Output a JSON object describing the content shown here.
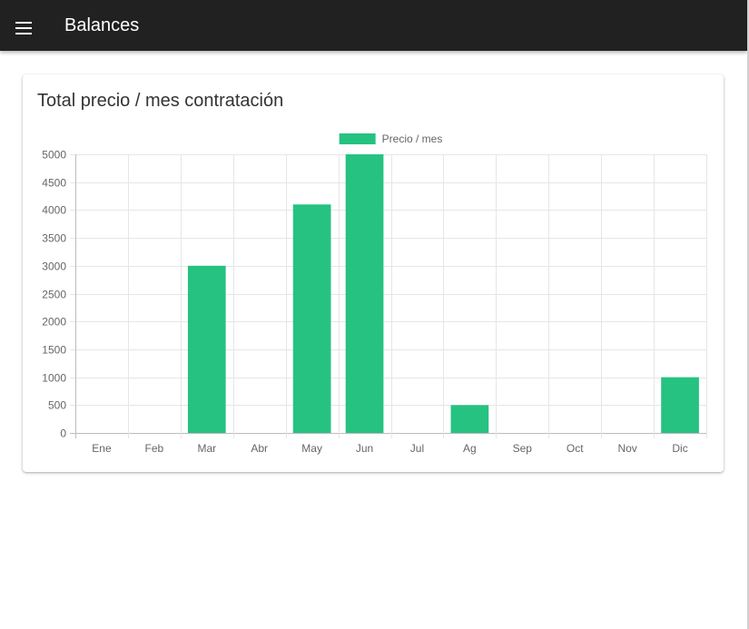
{
  "appbar": {
    "title": "Balances",
    "menu_icon": "menu-icon"
  },
  "card": {
    "title": "Total precio / mes contratación"
  },
  "colors": {
    "appbar": "#212121",
    "bar": "#26c281"
  },
  "chart_data": {
    "type": "bar",
    "title": "",
    "xlabel": "",
    "ylabel": "",
    "categories": [
      "Ene",
      "Feb",
      "Mar",
      "Abr",
      "May",
      "Jun",
      "Jul",
      "Ag",
      "Sep",
      "Oct",
      "Nov",
      "Dic"
    ],
    "series": [
      {
        "name": "Precio / mes",
        "values": [
          0,
          0,
          3000,
          0,
          4100,
          5000,
          0,
          500,
          0,
          0,
          0,
          1000
        ]
      }
    ],
    "ylim": [
      0,
      5000
    ],
    "yticks": [
      0,
      500,
      1000,
      1500,
      2000,
      2500,
      3000,
      3500,
      4000,
      4500,
      5000
    ],
    "grid": true,
    "legend": "top-center"
  }
}
